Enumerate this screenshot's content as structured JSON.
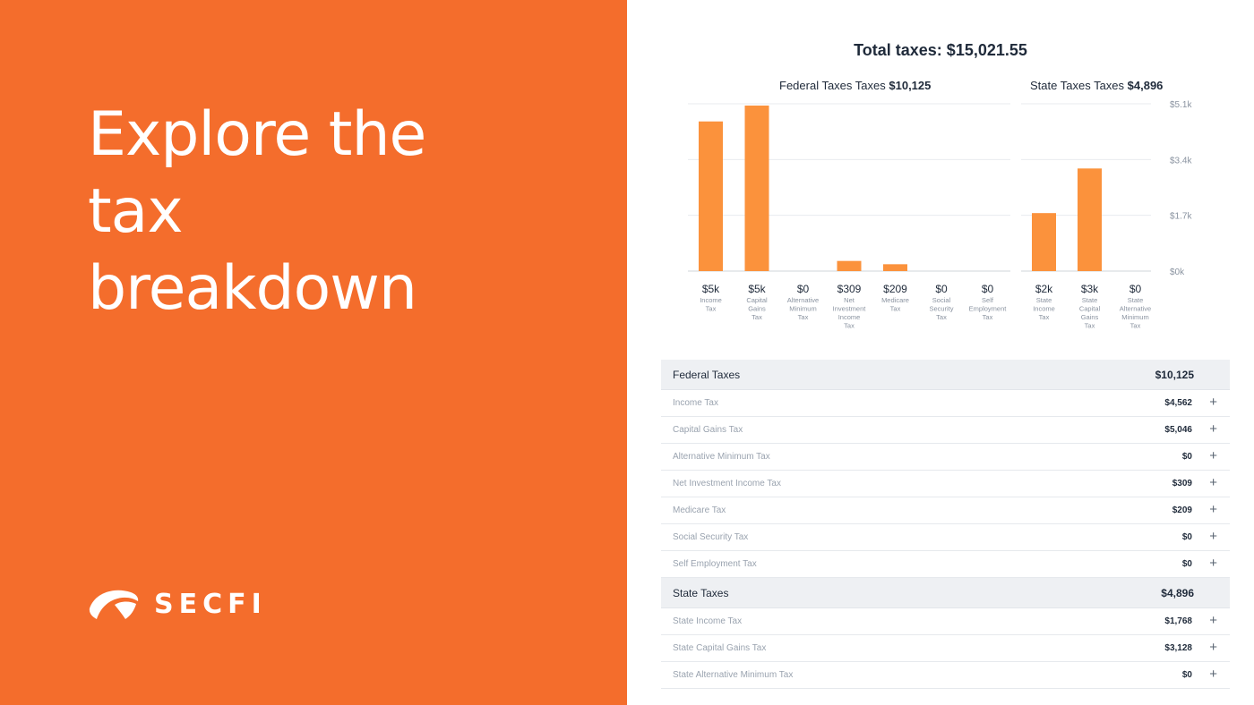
{
  "promo": {
    "headline_lines": [
      "Explore the",
      "tax",
      "breakdown"
    ],
    "brand_name": "SECFI",
    "background_color": "#f46d2c",
    "logo_icon": "secfi-logo-icon"
  },
  "summary": {
    "total_label": "Total taxes: $15,021.55"
  },
  "federal_chart_title": {
    "prefix": "Federal Taxes Taxes ",
    "amount": "$10,125"
  },
  "state_chart_title": {
    "prefix": "State Taxes Taxes ",
    "amount": "$4,896"
  },
  "chart_data": {
    "type": "bar",
    "ylim": [
      0,
      5100
    ],
    "y_ticks": [
      0,
      1700,
      3400,
      5100
    ],
    "y_tick_labels": [
      "$0k",
      "$1.7k",
      "$3.4k",
      "$5.1k"
    ],
    "bar_color": "#fb923c",
    "groups": [
      {
        "name": "Federal Taxes",
        "categories": [
          {
            "label_lines": [
              "Income",
              "Tax"
            ],
            "value": 4562,
            "value_label": "$5k"
          },
          {
            "label_lines": [
              "Capital",
              "Gains",
              "Tax"
            ],
            "value": 5046,
            "value_label": "$5k"
          },
          {
            "label_lines": [
              "Alternative",
              "Minimum",
              "Tax"
            ],
            "value": 0,
            "value_label": "$0"
          },
          {
            "label_lines": [
              "Net",
              "Investment",
              "Income",
              "Tax"
            ],
            "value": 309,
            "value_label": "$309"
          },
          {
            "label_lines": [
              "Medicare",
              "Tax"
            ],
            "value": 209,
            "value_label": "$209"
          },
          {
            "label_lines": [
              "Social",
              "Security",
              "Tax"
            ],
            "value": 0,
            "value_label": "$0"
          },
          {
            "label_lines": [
              "Self",
              "Employment",
              "Tax"
            ],
            "value": 0,
            "value_label": "$0"
          }
        ]
      },
      {
        "name": "State Taxes",
        "categories": [
          {
            "label_lines": [
              "State",
              "Income",
              "Tax"
            ],
            "value": 1768,
            "value_label": "$2k"
          },
          {
            "label_lines": [
              "State",
              "Capital",
              "Gains",
              "Tax"
            ],
            "value": 3128,
            "value_label": "$3k"
          },
          {
            "label_lines": [
              "State",
              "Alternative",
              "Minimum",
              "Tax"
            ],
            "value": 0,
            "value_label": "$0"
          }
        ]
      }
    ]
  },
  "table": {
    "groups": [
      {
        "label": "Federal Taxes",
        "amount": "$10,125",
        "rows": [
          {
            "label": "Income Tax",
            "amount": "$4,562"
          },
          {
            "label": "Capital Gains Tax",
            "amount": "$5,046"
          },
          {
            "label": "Alternative Minimum Tax",
            "amount": "$0"
          },
          {
            "label": "Net Investment Income Tax",
            "amount": "$309"
          },
          {
            "label": "Medicare Tax",
            "amount": "$209"
          },
          {
            "label": "Social Security Tax",
            "amount": "$0"
          },
          {
            "label": "Self Employment Tax",
            "amount": "$0"
          }
        ]
      },
      {
        "label": "State Taxes",
        "amount": "$4,896",
        "rows": [
          {
            "label": "State Income Tax",
            "amount": "$1,768"
          },
          {
            "label": "State Capital Gains Tax",
            "amount": "$3,128"
          },
          {
            "label": "State Alternative Minimum Tax",
            "amount": "$0"
          }
        ]
      }
    ],
    "expand_icon": "plus-icon",
    "expand_glyph": "+"
  }
}
